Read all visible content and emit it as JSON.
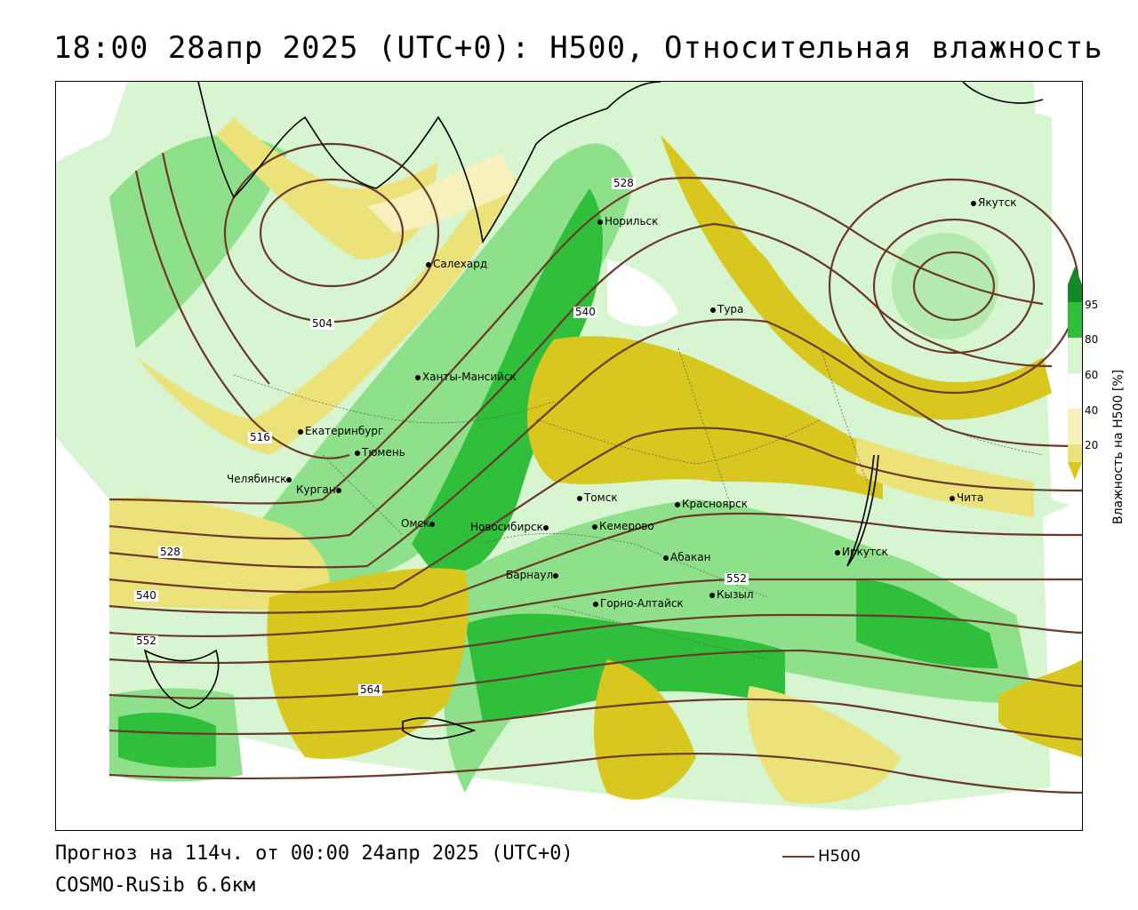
{
  "title": "18:00 28апр 2025 (UTC+0): H500, Относительная влажность",
  "footer": {
    "forecast": "Прогноз на 114ч. от 00:00 24апр 2025 (UTC+0)",
    "model": "COSMO-RuSib 6.6км"
  },
  "legend": {
    "h500_label": "H500"
  },
  "colorbar": {
    "title": "Влажность на H500 [%]",
    "ticks": [
      "95",
      "80",
      "60",
      "40",
      "20"
    ],
    "colors": {
      "very_dry": "#d8c71e",
      "dry": "#ece27a",
      "dry_light": "#f7f1bd",
      "mid": "#ffffff",
      "moist_light": "#d6f5d0",
      "moist": "#8fe08a",
      "wet": "#2fbf3a",
      "saturated": "#138a27"
    }
  },
  "contours": {
    "color": "#6b3a2a",
    "labels": [
      "528",
      "540",
      "504",
      "516",
      "528",
      "540",
      "552",
      "564",
      "552"
    ]
  },
  "cities": [
    "Якутск",
    "Норильск",
    "Салехард",
    "Тура",
    "Ханты-Мансийск",
    "Екатеринбург",
    "Тюмень",
    "Челябинск",
    "Курган",
    "Омск",
    "Томск",
    "Красноярск",
    "Кемерово",
    "Новосибирск",
    "Абакан",
    "Иркутск",
    "Чита",
    "Барнаул",
    "Кызыл",
    "Горно-Алтайск"
  ]
}
